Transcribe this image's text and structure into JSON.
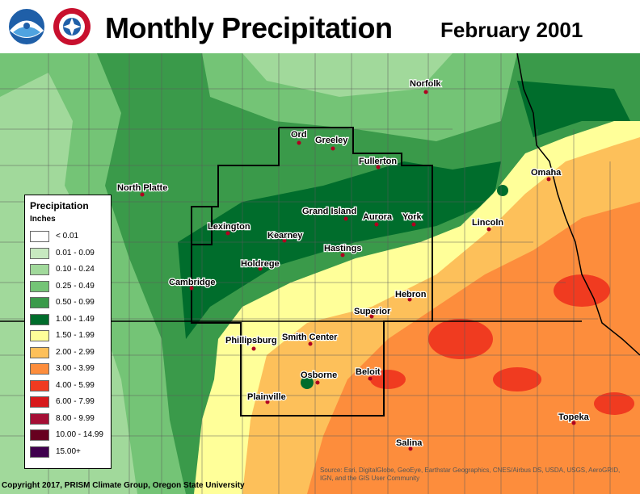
{
  "header": {
    "title": "Monthly Precipitation",
    "subtitle": "February 2001"
  },
  "logos": [
    "noaa-logo",
    "nws-logo"
  ],
  "legend": {
    "title": "Precipitation",
    "units": "Inches",
    "items": [
      {
        "label": "< 0.01",
        "color": "#ffffff"
      },
      {
        "label": "0.01 - 0.09",
        "color": "#c7e9c0"
      },
      {
        "label": "0.10 - 0.24",
        "color": "#a1d99b"
      },
      {
        "label": "0.25 - 0.49",
        "color": "#74c476"
      },
      {
        "label": "0.50 - 0.99",
        "color": "#3a9a4a"
      },
      {
        "label": "1.00 - 1.49",
        "color": "#006d2c"
      },
      {
        "label": "1.50 - 1.99",
        "color": "#ffff99"
      },
      {
        "label": "2.00 - 2.99",
        "color": "#fdc05a"
      },
      {
        "label": "3.00 - 3.99",
        "color": "#fd8d3c"
      },
      {
        "label": "4.00 - 5.99",
        "color": "#f03b20"
      },
      {
        "label": "6.00 - 7.99",
        "color": "#d7191c"
      },
      {
        "label": "8.00 - 9.99",
        "color": "#a50f35"
      },
      {
        "label": "10.00 - 14.99",
        "color": "#67001f"
      },
      {
        "label": "15.00+",
        "color": "#3f004d"
      }
    ]
  },
  "cities": [
    "North Platte",
    "Ord",
    "Greeley",
    "Fullerton",
    "Norfolk",
    "Omaha",
    "Lincoln",
    "York",
    "Aurora",
    "Grand Island",
    "Lexington",
    "Kearney",
    "Hastings",
    "Holdrege",
    "Cambridge",
    "Hebron",
    "Superior",
    "Phillipsburg",
    "Smith Center",
    "Osborne",
    "Beloit",
    "Plainville",
    "Salina",
    "Topeka"
  ],
  "footer": {
    "copyright": "Copyright 2017, PRISM Climate Group, Oregon State University",
    "source": "Source: Esri, DigitalGlobe, GeoEye, Earthstar Geographics, CNES/Airbus DS, USDA, USGS, AeroGRID, IGN, and the GIS User Community"
  }
}
